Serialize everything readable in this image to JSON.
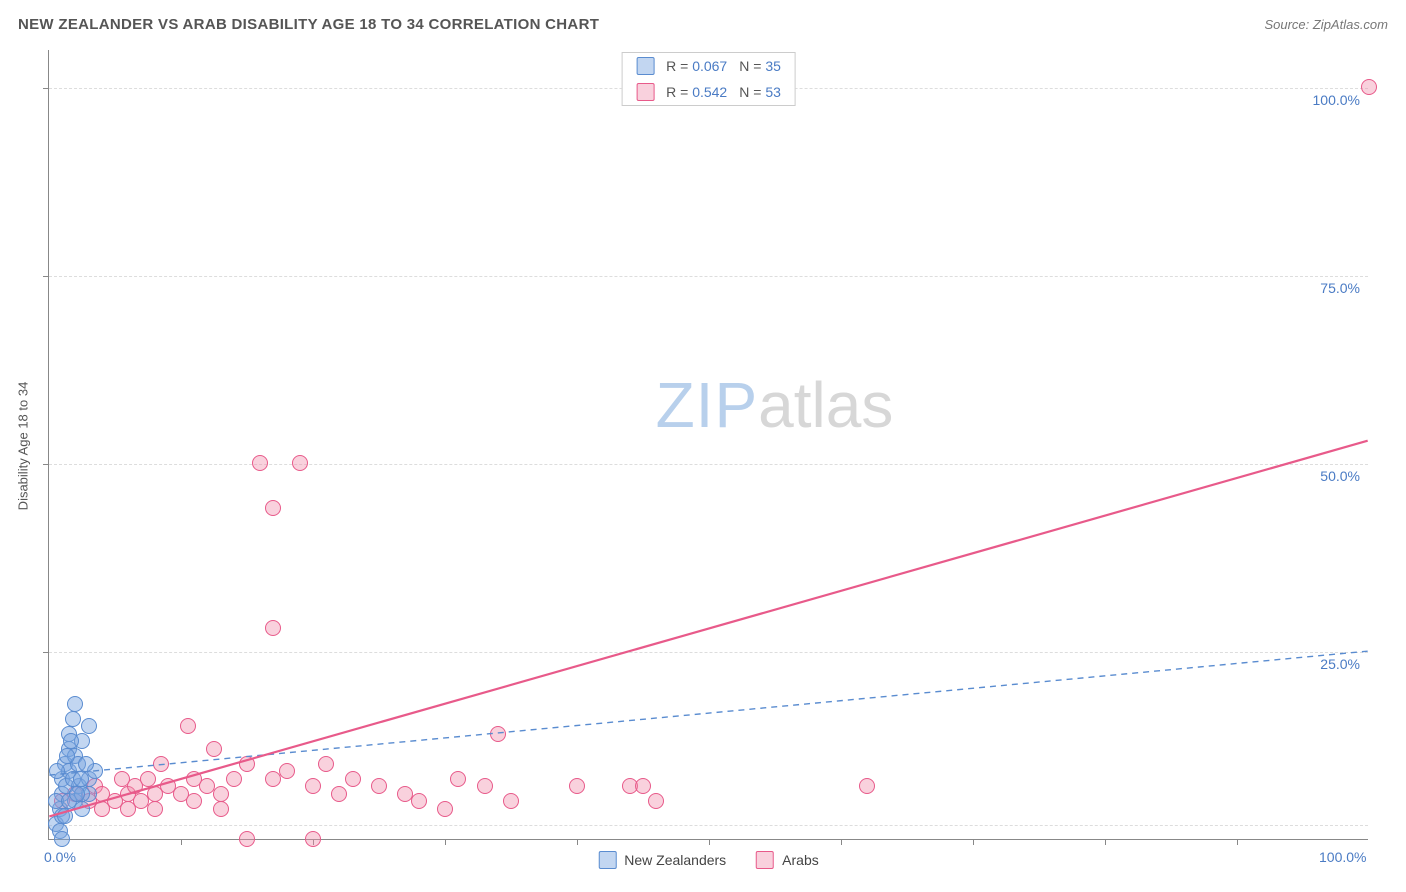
{
  "header": {
    "title": "NEW ZEALANDER VS ARAB DISABILITY AGE 18 TO 34 CORRELATION CHART",
    "source_prefix": "Source: ",
    "source": "ZipAtlas.com"
  },
  "chart": {
    "type": "scatter",
    "ylabel": "Disability Age 18 to 34",
    "xlim": [
      0,
      100
    ],
    "ylim": [
      0,
      105
    ],
    "background_color": "#ffffff",
    "grid_color": "#dddddd",
    "axis_color": "#888888",
    "tick_label_color": "#4a7bc4",
    "ytick_labels": [
      {
        "v": 25,
        "text": "25.0%"
      },
      {
        "v": 50,
        "text": "50.0%"
      },
      {
        "v": 75,
        "text": "75.0%"
      },
      {
        "v": 100,
        "text": "100.0%"
      }
    ],
    "xtick_labels": [
      {
        "v": 0,
        "text": "0.0%"
      },
      {
        "v": 100,
        "text": "100.0%"
      }
    ],
    "xticks_minor": [
      10,
      20,
      30,
      40,
      50,
      60,
      70,
      80,
      90
    ],
    "gridlines_y": [
      2,
      25,
      50,
      75,
      100
    ],
    "point_radius": 8,
    "point_border_width": 1.2,
    "series": {
      "nz": {
        "label": "New Zealanders",
        "fill": "rgba(120,165,225,0.45)",
        "stroke": "#5a8cd0",
        "R": "0.067",
        "N": "35",
        "trend": {
          "x1": 0,
          "y1": 8.5,
          "x2": 100,
          "y2": 25,
          "dash": "6,5",
          "width": 1.4,
          "color": "#5a8cd0"
        },
        "points": [
          [
            0.5,
            2
          ],
          [
            0.8,
            4
          ],
          [
            1,
            6
          ],
          [
            1,
            8
          ],
          [
            1.2,
            10
          ],
          [
            1.5,
            12
          ],
          [
            1.5,
            14
          ],
          [
            1.8,
            16
          ],
          [
            2,
            18
          ],
          [
            0.5,
            5
          ],
          [
            1,
            3
          ],
          [
            1.3,
            7
          ],
          [
            1.5,
            9
          ],
          [
            2,
            11
          ],
          [
            2,
            5
          ],
          [
            2.3,
            7
          ],
          [
            2.5,
            13
          ],
          [
            2.5,
            4
          ],
          [
            3,
            6
          ],
          [
            3,
            15
          ],
          [
            0.8,
            1
          ],
          [
            1.2,
            3
          ],
          [
            1.5,
            5
          ],
          [
            1.8,
            8
          ],
          [
            2.2,
            10
          ],
          [
            2.5,
            6
          ],
          [
            3,
            8
          ],
          [
            3.5,
            9
          ],
          [
            1,
            0
          ],
          [
            0.6,
            9
          ],
          [
            1.4,
            11
          ],
          [
            1.7,
            13
          ],
          [
            2.1,
            6
          ],
          [
            2.4,
            8
          ],
          [
            2.8,
            10
          ]
        ]
      },
      "arab": {
        "label": "Arabs",
        "fill": "rgba(240,140,170,0.40)",
        "stroke": "#e85a8a",
        "R": "0.542",
        "N": "53",
        "trend": {
          "x1": 0,
          "y1": 3,
          "x2": 100,
          "y2": 53,
          "dash": "none",
          "width": 2.2,
          "color": "#e85a8a"
        },
        "points": [
          [
            1,
            5
          ],
          [
            2,
            6
          ],
          [
            3,
            5
          ],
          [
            3.5,
            7
          ],
          [
            4,
            6
          ],
          [
            5,
            5
          ],
          [
            5.5,
            8
          ],
          [
            6,
            6
          ],
          [
            6.5,
            7
          ],
          [
            7,
            5
          ],
          [
            7.5,
            8
          ],
          [
            8,
            6
          ],
          [
            8.5,
            10
          ],
          [
            9,
            7
          ],
          [
            10,
            6
          ],
          [
            10.5,
            15
          ],
          [
            11,
            8
          ],
          [
            12,
            7
          ],
          [
            12.5,
            12
          ],
          [
            13,
            6
          ],
          [
            14,
            8
          ],
          [
            15,
            10
          ],
          [
            15,
            0
          ],
          [
            16,
            50
          ],
          [
            17,
            8
          ],
          [
            18,
            9
          ],
          [
            19,
            50
          ],
          [
            20,
            7
          ],
          [
            20,
            0
          ],
          [
            21,
            10
          ],
          [
            22,
            6
          ],
          [
            17,
            28
          ],
          [
            17,
            44
          ],
          [
            23,
            8
          ],
          [
            25,
            7
          ],
          [
            27,
            6
          ],
          [
            28,
            5
          ],
          [
            30,
            4
          ],
          [
            31,
            8
          ],
          [
            33,
            7
          ],
          [
            34,
            14
          ],
          [
            35,
            5
          ],
          [
            40,
            7
          ],
          [
            44,
            7
          ],
          [
            45,
            7
          ],
          [
            46,
            5
          ],
          [
            62,
            7
          ],
          [
            100,
            100
          ],
          [
            4,
            4
          ],
          [
            6,
            4
          ],
          [
            8,
            4
          ],
          [
            11,
            5
          ],
          [
            13,
            4
          ]
        ]
      }
    },
    "legend_top": {
      "border_color": "#cccccc",
      "R_label": "R =",
      "N_label": "N ="
    },
    "watermark": {
      "text_bold": "ZIP",
      "text_light": "atlas",
      "color_bold": "#b8d0ec",
      "color_light": "#d7d7d7"
    }
  }
}
